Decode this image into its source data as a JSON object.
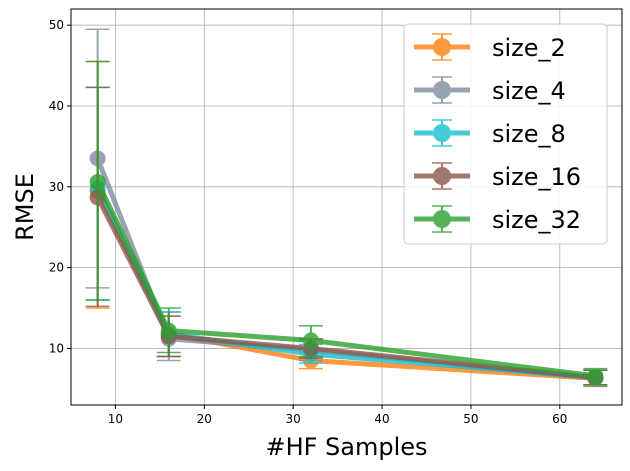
{
  "chart_data": {
    "type": "line",
    "xlabel": "#HF Samples",
    "ylabel": "RMSE",
    "xlim": [
      5,
      67
    ],
    "ylim": [
      3,
      52
    ],
    "xticks": [
      10,
      20,
      30,
      40,
      50,
      60
    ],
    "yticks": [
      10,
      20,
      30,
      40,
      50
    ],
    "grid": true,
    "legend": "top-right",
    "x": [
      8,
      16,
      32,
      64
    ],
    "series": [
      {
        "name": "size_2",
        "color": "#ff7f0e",
        "values": [
          29.5,
          11.8,
          8.5,
          6.3
        ],
        "err_low": [
          15.0,
          9.0,
          7.5,
          5.3
        ],
        "err_high": [
          45.5,
          14.0,
          9.5,
          7.3
        ]
      },
      {
        "name": "size_4",
        "color": "#7f8c9e",
        "values": [
          33.5,
          11.2,
          9.8,
          6.3
        ],
        "err_low": [
          17.5,
          8.5,
          8.5,
          5.3
        ],
        "err_high": [
          49.5,
          14.5,
          11.0,
          7.3
        ]
      },
      {
        "name": "size_8",
        "color": "#17becf",
        "values": [
          29.8,
          11.8,
          9.3,
          6.4
        ],
        "err_low": [
          16.0,
          9.0,
          8.2,
          5.5
        ],
        "err_high": [
          42.3,
          14.5,
          10.5,
          7.3
        ]
      },
      {
        "name": "size_16",
        "color": "#8c564b",
        "values": [
          28.7,
          11.5,
          10.0,
          6.4
        ],
        "err_low": [
          15.2,
          9.0,
          8.8,
          5.5
        ],
        "err_high": [
          42.3,
          14.0,
          11.2,
          7.3
        ]
      },
      {
        "name": "size_32",
        "color": "#2ca02c",
        "values": [
          30.6,
          12.2,
          11.0,
          6.6
        ],
        "err_low": [
          16.0,
          9.5,
          9.0,
          5.5
        ],
        "err_high": [
          45.5,
          15.0,
          12.8,
          7.5
        ]
      }
    ]
  }
}
